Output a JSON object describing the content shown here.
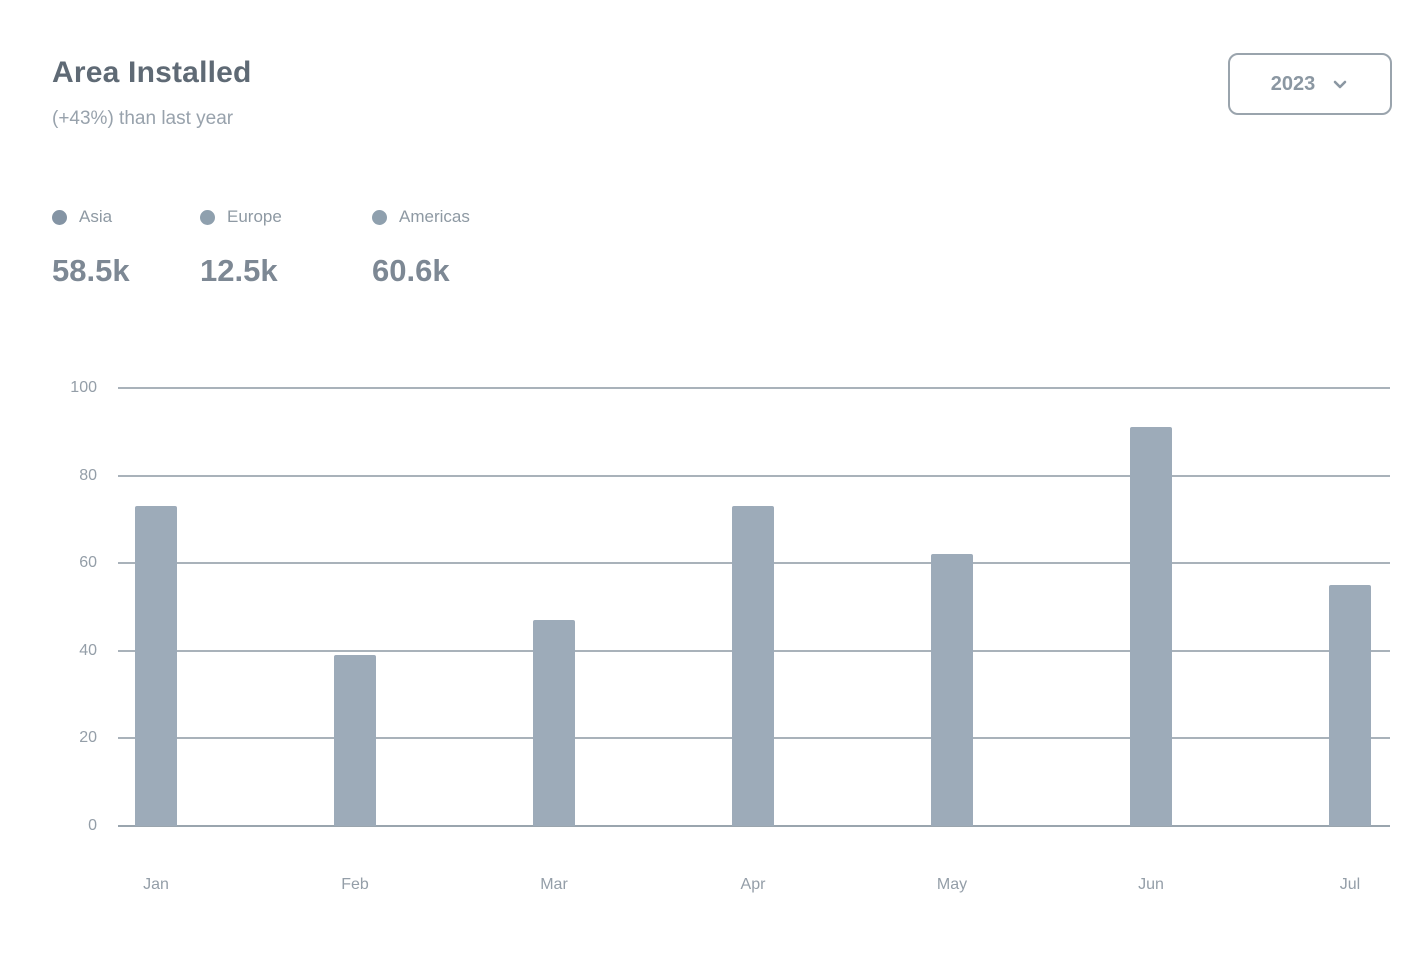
{
  "card": {
    "title": "Area Installed",
    "subtitle": "(+43%) than last year",
    "year_select": {
      "value": "2023",
      "icon": "chevron-down-icon"
    }
  },
  "legend": {
    "items": [
      {
        "label": "Asia",
        "total": "58.5k",
        "color": "#8494a4"
      },
      {
        "label": "Europe",
        "total": "12.5k",
        "color": "#8fa0ae"
      },
      {
        "label": "Americas",
        "total": "60.6k",
        "color": "#8fa0ae"
      }
    ]
  },
  "colors": {
    "bar": "#9dabb9",
    "gridline": "#9aa5ae",
    "axis_label": "#949ea8",
    "title_text": "#5f6a75",
    "subtitle_text": "#98a2ac"
  },
  "chart_data": {
    "type": "bar",
    "title": "Area Installed",
    "categories": [
      "Jan",
      "Feb",
      "Mar",
      "Apr",
      "May",
      "Jun",
      "Jul"
    ],
    "values": [
      73,
      39,
      47,
      73,
      62,
      91,
      55
    ],
    "xlabel": "",
    "ylabel": "",
    "ylim": [
      0,
      100
    ],
    "yticks": [
      0,
      20,
      40,
      60,
      80,
      100
    ],
    "grid": true,
    "legend_position": "top-left"
  }
}
